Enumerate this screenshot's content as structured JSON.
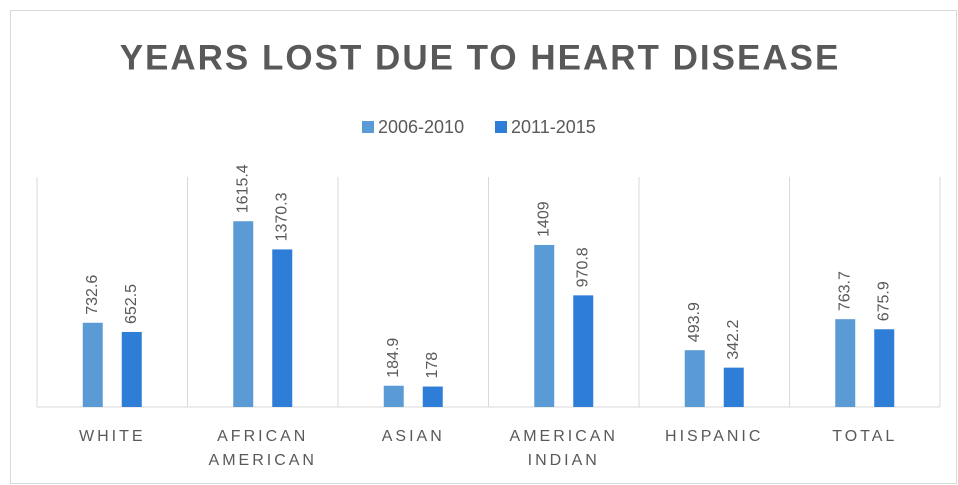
{
  "chart_data": {
    "type": "bar",
    "title": "YEARS LOST DUE TO HEART DISEASE",
    "categories": [
      "WHITE",
      "AFRICAN AMERICAN",
      "ASIAN",
      "AMERICAN INDIAN",
      "HISPANIC",
      "TOTAL"
    ],
    "series": [
      {
        "name": "2006-2010",
        "color": "#5b9bd5",
        "values": [
          732.6,
          1615.4,
          184.9,
          1409,
          493.9,
          763.7
        ]
      },
      {
        "name": "2011-2015",
        "color": "#2e7dd7",
        "values": [
          652.5,
          1370.3,
          178,
          970.8,
          342.2,
          675.9
        ]
      }
    ],
    "ylim": [
      0,
      2000
    ],
    "legend": "top"
  }
}
